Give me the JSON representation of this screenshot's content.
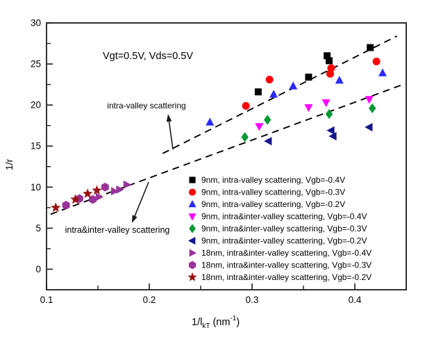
{
  "figure": {
    "background": "#ffffff",
    "frame_color": "#1a1a1a"
  },
  "chart_data": {
    "type": "scatter",
    "annotation_title": "Vgt=0.5V, Vds=0.5V",
    "xlabel": {
      "text": "1/l_kT (nm^-1)",
      "prefix": "1/l",
      "sub": "kT",
      "mid": " (nm",
      "sup": "-1",
      "suffix": ")"
    },
    "ylabel": "1/r",
    "xlim": [
      0.1,
      0.45
    ],
    "ylim": [
      -2.5,
      30
    ],
    "grid": false,
    "legend_position": "inside-right-middle",
    "xticks": {
      "major": [
        0.1,
        0.2,
        0.3,
        0.4
      ],
      "labels": [
        "0.1",
        "0.2",
        "0.3",
        "0.4"
      ],
      "minor": [
        0.15,
        0.25,
        0.35
      ]
    },
    "yticks": {
      "major": [
        0,
        5,
        10,
        15,
        20,
        25,
        30
      ],
      "labels": [
        "0",
        "5",
        "10",
        "15",
        "20",
        "25",
        "30"
      ],
      "minor": [
        2.5,
        7.5,
        12.5,
        17.5,
        22.5,
        27.5
      ]
    },
    "series": [
      {
        "name": "9nm, intra-valley scattering, Vgb=-0.4V",
        "marker": "square",
        "color": "#000000",
        "points": [
          [
            0.306,
            21.6
          ],
          [
            0.355,
            23.4
          ],
          [
            0.373,
            26.0
          ],
          [
            0.375,
            25.4
          ],
          [
            0.415,
            27.0
          ]
        ]
      },
      {
        "name": "9nm, intra-valley scattering, Vgb=-0.3V",
        "marker": "circle",
        "color": "#ff0000",
        "points": [
          [
            0.294,
            19.9
          ],
          [
            0.317,
            23.1
          ],
          [
            0.376,
            23.8
          ],
          [
            0.377,
            24.5
          ],
          [
            0.421,
            25.3
          ]
        ]
      },
      {
        "name": "9nm, intra-valley scattering, Vgb=-0.2V",
        "marker": "triangle-up",
        "color": "#2a2aff",
        "points": [
          [
            0.259,
            17.9
          ],
          [
            0.321,
            21.3
          ],
          [
            0.34,
            22.3
          ],
          [
            0.385,
            23.0
          ],
          [
            0.427,
            23.9
          ]
        ]
      },
      {
        "name": "9nm, intra&inter-valley scattering, Vgb=-0.4V",
        "marker": "triangle-down",
        "color": "#ff00ff",
        "points": [
          [
            0.307,
            17.4
          ],
          [
            0.355,
            19.7
          ],
          [
            0.372,
            20.3
          ],
          [
            0.414,
            20.7
          ]
        ]
      },
      {
        "name": "9nm, intra&inter-valley scattering, Vgb=-0.3V",
        "marker": "diamond",
        "color": "#009933",
        "points": [
          [
            0.293,
            16.1
          ],
          [
            0.315,
            18.2
          ],
          [
            0.375,
            18.9
          ],
          [
            0.417,
            19.6
          ]
        ]
      },
      {
        "name": "9nm, intra&inter-valley scattering, Vgb=-0.2V",
        "marker": "triangle-left",
        "color": "#14148c",
        "points": [
          [
            0.316,
            15.6
          ],
          [
            0.377,
            16.9
          ],
          [
            0.379,
            16.2
          ],
          [
            0.414,
            17.3
          ]
        ]
      },
      {
        "name": "18nm, intra&inter-valley scattering, Vgb=-0.4V",
        "marker": "triangle-right",
        "color": "#993399",
        "points": [
          [
            0.151,
            8.8
          ],
          [
            0.166,
            9.5
          ],
          [
            0.171,
            9.7
          ],
          [
            0.178,
            10.3
          ]
        ]
      },
      {
        "name": "18nm, intra&inter-valley scattering, Vgb=-0.3V",
        "marker": "hexagon",
        "color": "#993399",
        "points": [
          [
            0.119,
            7.8
          ],
          [
            0.132,
            8.6
          ],
          [
            0.145,
            8.5
          ],
          [
            0.157,
            10.0
          ]
        ]
      },
      {
        "name": "18nm, intra&inter-valley scattering, Vgb=-0.2V",
        "marker": "star",
        "color": "#991111",
        "points": [
          [
            0.109,
            7.5
          ],
          [
            0.128,
            8.5
          ],
          [
            0.14,
            9.2
          ],
          [
            0.149,
            9.6
          ]
        ]
      }
    ],
    "trend_lines": [
      {
        "label": "intra-valley scattering",
        "style": "dashed",
        "color": "#000000",
        "from": [
          0.213,
          14.1
        ],
        "to": [
          0.441,
          28.4
        ]
      },
      {
        "label": "intra&inter-valley scattering",
        "style": "dashed",
        "color": "#000000",
        "from": [
          0.104,
          6.7
        ],
        "to": [
          0.449,
          22.6
        ]
      }
    ]
  }
}
